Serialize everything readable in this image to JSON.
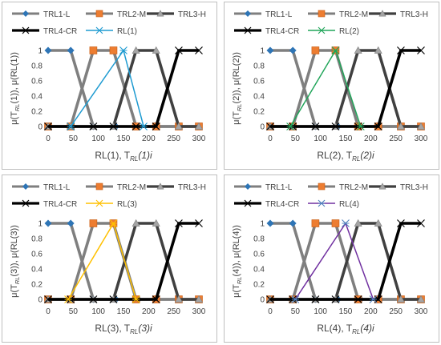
{
  "figure": {
    "panel_names": [
      "panel-rl1",
      "panel-rl2",
      "panel-rl3",
      "panel-rl4"
    ]
  },
  "chart_data": [
    {
      "type": "line",
      "title": "",
      "xlabel": "RL(1), T_RL(1)i",
      "xlabel_parts": {
        "pre": "RL(1), T",
        "sub": "RL",
        "post": "(1)i"
      },
      "ylabel_parts": {
        "pre": "μ(T",
        "sub": "RL",
        "post": "(1)), μ(RL(1))"
      },
      "xlim": [
        0,
        300
      ],
      "ylim": [
        0,
        1
      ],
      "xticks": [
        "0",
        "50",
        "100",
        "150",
        "200",
        "250",
        "300"
      ],
      "yticks": [
        "0",
        "0.2",
        "0.4",
        "0.6",
        "0.8",
        "1"
      ],
      "grid": false,
      "legend_position": "top",
      "series": [
        {
          "name": "TRL1-L",
          "color": "#7f7f7f",
          "marker": "diamond",
          "marker_color": "#2e75b6",
          "x": [
            0,
            45,
            90,
            135,
            180,
            215,
            260,
            300
          ],
          "y": [
            1,
            1,
            0,
            0,
            0,
            0,
            0,
            0
          ]
        },
        {
          "name": "TRL2-M",
          "color": "#7f7f7f",
          "marker": "square",
          "marker_color": "#ed7d31",
          "x": [
            0,
            45,
            90,
            130,
            175,
            215,
            260,
            300
          ],
          "y": [
            0,
            0,
            1,
            1,
            0,
            0,
            0,
            0
          ]
        },
        {
          "name": "TRL3-H",
          "color": "#404040",
          "marker": "triangle",
          "marker_color": "#a5a5a5",
          "x": [
            0,
            45,
            90,
            130,
            175,
            215,
            260,
            300
          ],
          "y": [
            0,
            0,
            0,
            0,
            1,
            1,
            0,
            0
          ]
        },
        {
          "name": "TRL4-CR",
          "color": "#000000",
          "marker": "x",
          "marker_color": "#000000",
          "x": [
            0,
            45,
            90,
            130,
            175,
            215,
            260,
            300
          ],
          "y": [
            0,
            0,
            0,
            0,
            0,
            0,
            1,
            1
          ]
        },
        {
          "name": "RL(1)",
          "color": "#1f9bd1",
          "marker": "asterisk",
          "marker_color": "#1f9bd1",
          "x": [
            45,
            150,
            190
          ],
          "y": [
            0,
            1,
            0
          ]
        }
      ]
    },
    {
      "type": "line",
      "title": "",
      "xlabel": "RL(2), T_RL(2)i",
      "xlabel_parts": {
        "pre": "RL(2), T",
        "sub": "RL",
        "post": "(2)i"
      },
      "ylabel_parts": {
        "pre": "μ(T",
        "sub": "RL",
        "post": "(2)), μ(RL(2))"
      },
      "xlim": [
        0,
        300
      ],
      "ylim": [
        0,
        1
      ],
      "xticks": [
        "0",
        "50",
        "100",
        "150",
        "200",
        "250",
        "300"
      ],
      "yticks": [
        "0",
        "0.2",
        "0.4",
        "0.6",
        "0.8",
        "1"
      ],
      "grid": false,
      "legend_position": "top",
      "series": [
        {
          "name": "TRL1-L",
          "color": "#7f7f7f",
          "marker": "diamond",
          "marker_color": "#2e75b6",
          "x": [
            0,
            45,
            90,
            135,
            180,
            215,
            260,
            300
          ],
          "y": [
            1,
            1,
            0,
            0,
            0,
            0,
            0,
            0
          ]
        },
        {
          "name": "TRL2-M",
          "color": "#7f7f7f",
          "marker": "square",
          "marker_color": "#ed7d31",
          "x": [
            0,
            45,
            90,
            130,
            175,
            215,
            260,
            300
          ],
          "y": [
            0,
            0,
            1,
            1,
            0,
            0,
            0,
            0
          ]
        },
        {
          "name": "TRL3-H",
          "color": "#404040",
          "marker": "triangle",
          "marker_color": "#a5a5a5",
          "x": [
            0,
            45,
            90,
            130,
            175,
            215,
            260,
            300
          ],
          "y": [
            0,
            0,
            0,
            0,
            1,
            1,
            0,
            0
          ]
        },
        {
          "name": "TRL4-CR",
          "color": "#000000",
          "marker": "x",
          "marker_color": "#000000",
          "x": [
            0,
            45,
            90,
            130,
            175,
            215,
            260,
            300
          ],
          "y": [
            0,
            0,
            0,
            0,
            0,
            0,
            1,
            1
          ]
        },
        {
          "name": "RL(2)",
          "color": "#21a55a",
          "marker": "asterisk",
          "marker_color": "#21a55a",
          "x": [
            40,
            130,
            180
          ],
          "y": [
            0,
            1,
            0
          ]
        }
      ]
    },
    {
      "type": "line",
      "title": "",
      "xlabel": "RL(3), T_RL(3)i",
      "xlabel_parts": {
        "pre": "RL(3), T",
        "sub": "RL",
        "post": "(3)i"
      },
      "ylabel_parts": {
        "pre": "μ(T",
        "sub": "RL",
        "post": "(3)), μ(RL(3))"
      },
      "xlim": [
        0,
        300
      ],
      "ylim": [
        0,
        1
      ],
      "xticks": [
        "0",
        "50",
        "100",
        "150",
        "200",
        "250",
        "300"
      ],
      "yticks": [
        "0",
        "0.2",
        "0.4",
        "0.6",
        "0.8",
        "1"
      ],
      "grid": false,
      "legend_position": "top",
      "series": [
        {
          "name": "TRL1-L",
          "color": "#7f7f7f",
          "marker": "diamond",
          "marker_color": "#2e75b6",
          "x": [
            0,
            45,
            90,
            135,
            180,
            215,
            260,
            300
          ],
          "y": [
            1,
            1,
            0,
            0,
            0,
            0,
            0,
            0
          ]
        },
        {
          "name": "TRL2-M",
          "color": "#7f7f7f",
          "marker": "square",
          "marker_color": "#ed7d31",
          "x": [
            0,
            45,
            90,
            130,
            175,
            215,
            260,
            300
          ],
          "y": [
            0,
            0,
            1,
            1,
            0,
            0,
            0,
            0
          ]
        },
        {
          "name": "TRL3-H",
          "color": "#404040",
          "marker": "triangle",
          "marker_color": "#a5a5a5",
          "x": [
            0,
            45,
            90,
            130,
            175,
            215,
            260,
            300
          ],
          "y": [
            0,
            0,
            0,
            0,
            1,
            1,
            0,
            0
          ]
        },
        {
          "name": "TRL4-CR",
          "color": "#000000",
          "marker": "x",
          "marker_color": "#000000",
          "x": [
            0,
            45,
            90,
            130,
            175,
            215,
            260,
            300
          ],
          "y": [
            0,
            0,
            0,
            0,
            0,
            0,
            1,
            1
          ]
        },
        {
          "name": "RL(3)",
          "color": "#ffc000",
          "marker": "asterisk",
          "marker_color": "#ffc000",
          "x": [
            40,
            130,
            175
          ],
          "y": [
            0,
            1,
            0
          ]
        }
      ]
    },
    {
      "type": "line",
      "title": "",
      "xlabel": "RL(4), T_RL(4)i",
      "xlabel_parts": {
        "pre": "RL(4), T",
        "sub": "RL",
        "post": "(4)i"
      },
      "ylabel_parts": {
        "pre": "μ(T",
        "sub": "RL",
        "post": "(4)), μ(RL(4))"
      },
      "xlim": [
        0,
        300
      ],
      "ylim": [
        0,
        1
      ],
      "xticks": [
        "0",
        "50",
        "100",
        "150",
        "200",
        "250",
        "300"
      ],
      "yticks": [
        "0",
        "0.2",
        "0.4",
        "0.6",
        "0.8",
        "1"
      ],
      "grid": false,
      "legend_position": "top",
      "series": [
        {
          "name": "TRL1-L",
          "color": "#7f7f7f",
          "marker": "diamond",
          "marker_color": "#2e75b6",
          "x": [
            0,
            45,
            90,
            135,
            180,
            215,
            260,
            300
          ],
          "y": [
            1,
            1,
            0,
            0,
            0,
            0,
            0,
            0
          ]
        },
        {
          "name": "TRL2-M",
          "color": "#7f7f7f",
          "marker": "square",
          "marker_color": "#ed7d31",
          "x": [
            0,
            45,
            90,
            130,
            175,
            215,
            260,
            300
          ],
          "y": [
            0,
            0,
            1,
            1,
            0,
            0,
            0,
            0
          ]
        },
        {
          "name": "TRL3-H",
          "color": "#404040",
          "marker": "triangle",
          "marker_color": "#a5a5a5",
          "x": [
            0,
            45,
            90,
            130,
            175,
            215,
            260,
            300
          ],
          "y": [
            0,
            0,
            0,
            0,
            1,
            1,
            0,
            0
          ]
        },
        {
          "name": "TRL4-CR",
          "color": "#000000",
          "marker": "x",
          "marker_color": "#000000",
          "x": [
            0,
            45,
            90,
            130,
            175,
            215,
            260,
            300
          ],
          "y": [
            0,
            0,
            0,
            0,
            0,
            0,
            1,
            1
          ]
        },
        {
          "name": "RL(4)",
          "color": "#7030a0",
          "marker": "asterisk",
          "marker_color": "#4f81bd",
          "x": [
            50,
            150,
            205
          ],
          "y": [
            0,
            1,
            0
          ]
        }
      ]
    }
  ]
}
